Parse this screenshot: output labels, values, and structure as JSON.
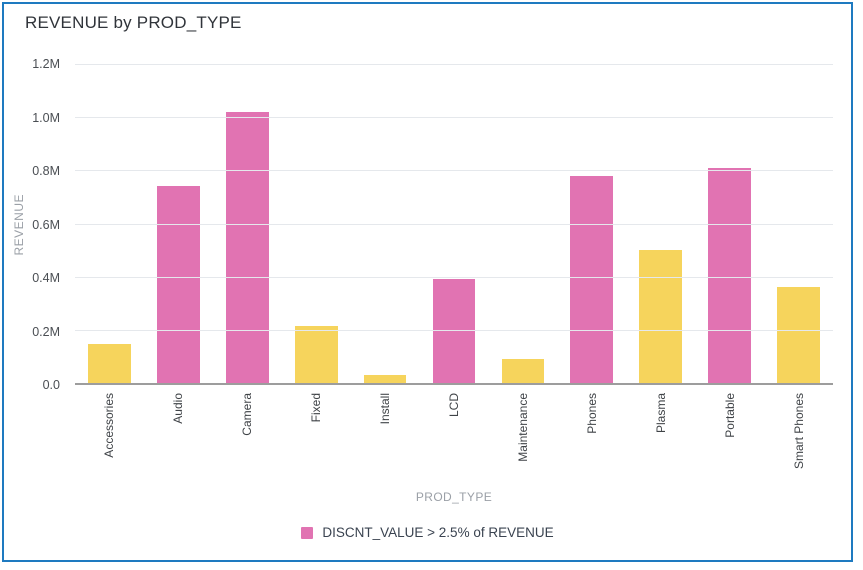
{
  "window": {
    "border_color": "#1e7ac0",
    "background": "#ffffff"
  },
  "header": {
    "title": "REVENUE by PROD_TYPE"
  },
  "chart_data": {
    "type": "bar",
    "title": "REVENUE by PROD_TYPE",
    "xlabel": "PROD_TYPE",
    "ylabel": "REVENUE",
    "ylim": [
      0,
      1200000
    ],
    "grid": true,
    "legend_position": "bottom-center",
    "y_tick_labels": [
      "1.2M",
      "1.0M",
      "0.8M",
      "0.6M",
      "0.4M",
      "0.2M",
      "0.0"
    ],
    "categories": [
      "Accessories",
      "Audio",
      "Camera",
      "Fixed",
      "Install",
      "LCD",
      "Maintenance",
      "Phones",
      "Plasma",
      "Portable",
      "Smart Phones"
    ],
    "values": [
      145000,
      740000,
      1020000,
      215000,
      30000,
      390000,
      90000,
      780000,
      500000,
      810000,
      360000
    ],
    "highlighted": [
      false,
      true,
      true,
      false,
      false,
      true,
      false,
      true,
      false,
      true,
      false
    ],
    "colors": {
      "highlight": "#e173b2",
      "normal": "#f6d45c",
      "gridline": "#e5e8ec",
      "axis_line": "#9d9d9d"
    },
    "legend": [
      {
        "label": "DISCNT_VALUE > 2.5% of REVENUE",
        "color": "#e173b2"
      }
    ]
  }
}
